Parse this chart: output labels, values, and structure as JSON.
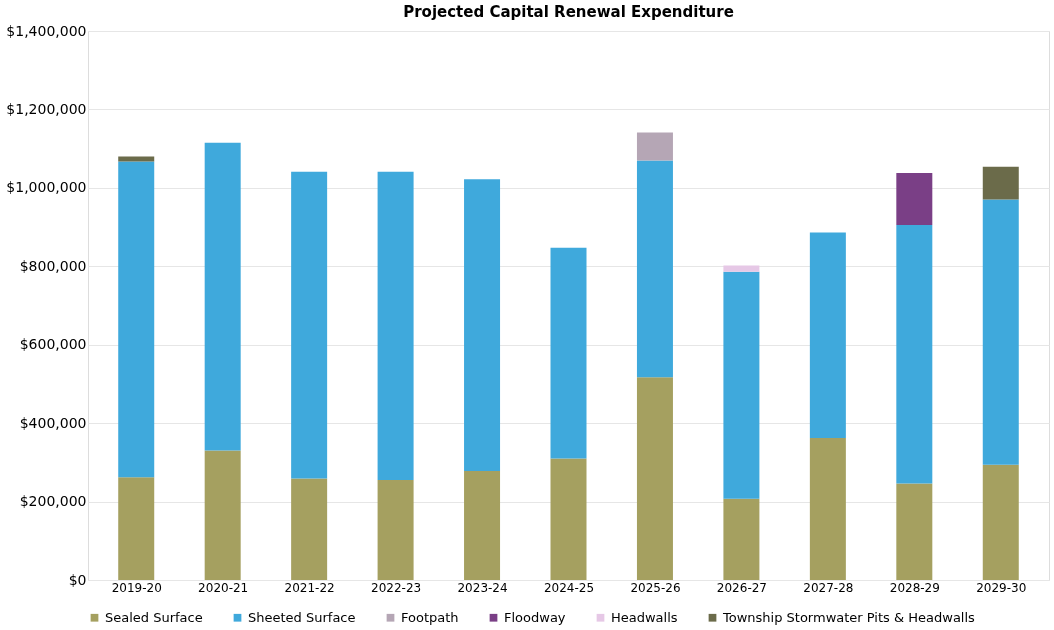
{
  "chart_data": {
    "type": "bar",
    "stacked": true,
    "title": "Projected Capital Renewal Expenditure",
    "categories": [
      "2019-20",
      "2020-21",
      "2021-22",
      "2022-23",
      "2023-24",
      "2024-25",
      "2025-26",
      "2026-27",
      "2027-28",
      "2028-29",
      "2029-30"
    ],
    "series": [
      {
        "name": "Sealed Surface",
        "color": "#a5a060",
        "values": [
          262000,
          330000,
          259000,
          255000,
          278000,
          310000,
          517000,
          207000,
          362000,
          246000,
          294000
        ]
      },
      {
        "name": "Sheeted Surface",
        "color": "#3fa9dc",
        "values": [
          805000,
          785000,
          782000,
          786000,
          744000,
          537000,
          553000,
          579000,
          524000,
          659000,
          676000
        ]
      },
      {
        "name": "Footpath",
        "color": "#b5a6b5",
        "values": [
          0,
          0,
          0,
          0,
          0,
          0,
          71000,
          0,
          0,
          0,
          0
        ]
      },
      {
        "name": "Floodway",
        "color": "#7a3f86",
        "values": [
          0,
          0,
          0,
          0,
          0,
          0,
          0,
          0,
          0,
          133000,
          0
        ]
      },
      {
        "name": "Headwalls",
        "color": "#e6c8e6",
        "values": [
          0,
          0,
          0,
          0,
          0,
          0,
          0,
          16000,
          0,
          0,
          0
        ]
      },
      {
        "name": "Township Stormwater Pits & Headwalls",
        "color": "#6b6b4a",
        "values": [
          13000,
          0,
          0,
          0,
          0,
          0,
          0,
          0,
          0,
          0,
          84000
        ]
      }
    ],
    "ylim": [
      0,
      1400000
    ],
    "yticks": [
      {
        "value": 0,
        "label": "$0"
      },
      {
        "value": 200000,
        "label": "$200,000"
      },
      {
        "value": 400000,
        "label": "$400,000"
      },
      {
        "value": 600000,
        "label": "$600,000"
      },
      {
        "value": 800000,
        "label": "$800,000"
      },
      {
        "value": 1000000,
        "label": "$1,000,000"
      },
      {
        "value": 1200000,
        "label": "$1,200,000"
      },
      {
        "value": 1400000,
        "label": "$1,400,000"
      }
    ],
    "grid": "y",
    "legend": "bottom"
  }
}
